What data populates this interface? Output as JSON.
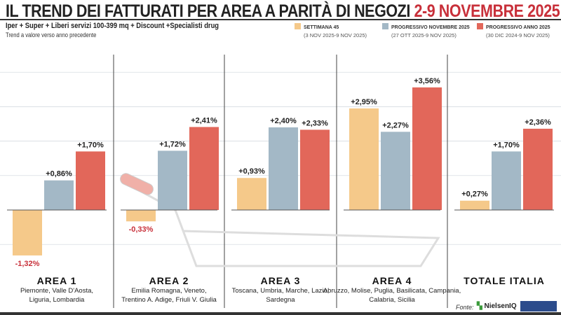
{
  "header": {
    "title": "IL TREND DEI FATTURATI PER AREA A PARITÀ DI NEGOZI",
    "title_highlight": "2-9 NOVEMBRE 2025",
    "subtitle": "Iper + Super + Liberi servizi 100-399 mq + Discount +Specialisti drug",
    "note": "Trend a valore verso anno precedente"
  },
  "legend": [
    {
      "name": "SETTIMANA 45",
      "dates": "(3 NOV 2025-9 NOV 2025)",
      "color": "#f5c98a"
    },
    {
      "name": "PROGRESSIVO NOVEMBRE 2025",
      "dates": "(27 OTT 2025-9 NOV 2025)",
      "color": "#a3b8c6"
    },
    {
      "name": "PROGRESSIVO ANNO 2025",
      "dates": "(30 DIC 2024-9 NOV 2025)",
      "color": "#e2675a"
    }
  ],
  "chart_data": {
    "type": "bar",
    "categories": [
      "AREA 1",
      "AREA 2",
      "AREA 3",
      "AREA 4",
      "TOTALE ITALIA"
    ],
    "category_regions": [
      "Piemonte, Valle D'Aosta, Liguria, Lombardia",
      "Emilia Romagna, Veneto, Trentino A. Adige, Friuli V. Giulia",
      "Toscana, Umbria, Marche, Lazio, Sardegna",
      "Abruzzo, Molise, Puglia, Basilicata, Campania, Calabria, Sicilia",
      ""
    ],
    "series": [
      {
        "name": "SETTIMANA 45",
        "values": [
          -1.32,
          -0.33,
          0.93,
          2.95,
          0.27
        ],
        "labels": [
          "-1,32%",
          "-0,33%",
          "+0,93%",
          "+2,95%",
          "+0,27%"
        ]
      },
      {
        "name": "PROGRESSIVO NOVEMBRE 2025",
        "values": [
          0.86,
          1.72,
          2.4,
          2.27,
          1.7
        ],
        "labels": [
          "+0,86%",
          "+1,72%",
          "+2,40%",
          "+2,27%",
          "+1,70%"
        ]
      },
      {
        "name": "PROGRESSIVO ANNO 2025",
        "values": [
          1.7,
          2.41,
          2.33,
          3.56,
          2.36
        ],
        "labels": [
          "+1,70%",
          "+2,41%",
          "+2,33%",
          "+3,56%",
          "+2,36%"
        ]
      }
    ],
    "ylim": [
      -1.5,
      4
    ],
    "grid": true
  },
  "footer": {
    "source_label": "Fonte:",
    "logo1": "NielsenIQ"
  }
}
